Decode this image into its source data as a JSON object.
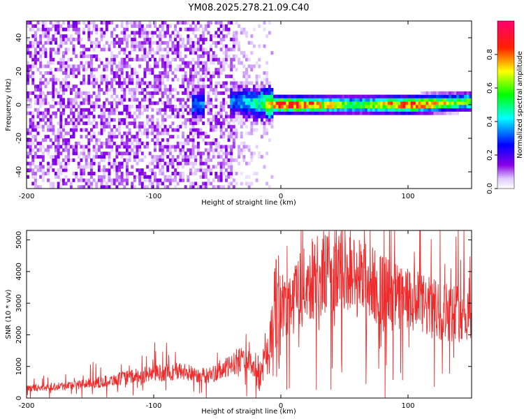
{
  "title": "YM08.2025.278.21.09.C40",
  "chart_data": [
    {
      "type": "heatmap",
      "xlabel": "Height of straight line (km)",
      "ylabel": "Frequency (Hz)",
      "xlim": [
        -200,
        150
      ],
      "ylim": [
        -50,
        50
      ],
      "xticks": [
        -200,
        -100,
        0,
        100
      ],
      "xtick_labels": [
        "-200",
        "-100",
        "0",
        "100"
      ],
      "yticks": [
        -40,
        -20,
        0,
        20,
        40
      ],
      "ytick_labels": [
        "-40",
        "-20",
        "0",
        "20",
        "40"
      ],
      "colorbar": {
        "label": "Normalized spectral amplitude",
        "range": [
          0,
          1
        ],
        "ticks": [
          0.0,
          0.2,
          0.4,
          0.6,
          0.8
        ],
        "tick_labels": [
          "0.0",
          "0.2",
          "0.4",
          "0.6",
          "0.8"
        ],
        "colors": [
          "#ffffff",
          "#8a00e6",
          "#0000ff",
          "#00ffff",
          "#00ff00",
          "#ffff00",
          "#ff0000",
          "#ff0080"
        ]
      },
      "band": {
        "center_frequency_hz": [
          [
            -65,
            0
          ],
          [
            -35,
            2
          ],
          [
            -20,
            1
          ],
          [
            0,
            0
          ],
          [
            50,
            0
          ],
          [
            100,
            0
          ],
          [
            150,
            2
          ]
        ],
        "peak_amplitude": [
          [
            -35,
            0.35
          ],
          [
            -15,
            0.5
          ],
          [
            0,
            0.9
          ],
          [
            20,
            0.85
          ],
          [
            60,
            0.55
          ],
          [
            100,
            0.9
          ],
          [
            140,
            0.6
          ]
        ]
      }
    },
    {
      "type": "line",
      "xlabel": "Height of straight line (km)",
      "ylabel": "SNR (10 * v/v)",
      "xlim": [
        -200,
        150
      ],
      "ylim": [
        0,
        5300
      ],
      "xticks": [
        -200,
        -100,
        0,
        100
      ],
      "xtick_labels": [
        "-200",
        "-100",
        "0",
        "100"
      ],
      "yticks": [
        0,
        1000,
        2000,
        3000,
        4000,
        5000
      ],
      "ytick_labels": [
        "0",
        "1000",
        "2000",
        "3000",
        "4000",
        "5000"
      ],
      "line_color": "#ee2a2a",
      "trend": {
        "x": [
          -200,
          -180,
          -160,
          -140,
          -120,
          -100,
          -80,
          -60,
          -50,
          -40,
          -30,
          -20,
          -15,
          -10,
          -5,
          0,
          10,
          20,
          30,
          40,
          50,
          60,
          70,
          80,
          90,
          100,
          110,
          120,
          130,
          140,
          150
        ],
        "y": [
          300,
          350,
          420,
          520,
          650,
          780,
          850,
          700,
          800,
          1000,
          1300,
          900,
          700,
          1600,
          2400,
          2900,
          3200,
          3600,
          3900,
          4000,
          3950,
          3850,
          3650,
          3400,
          3200,
          3050,
          2950,
          2800,
          2750,
          2700,
          2700
        ]
      }
    }
  ]
}
